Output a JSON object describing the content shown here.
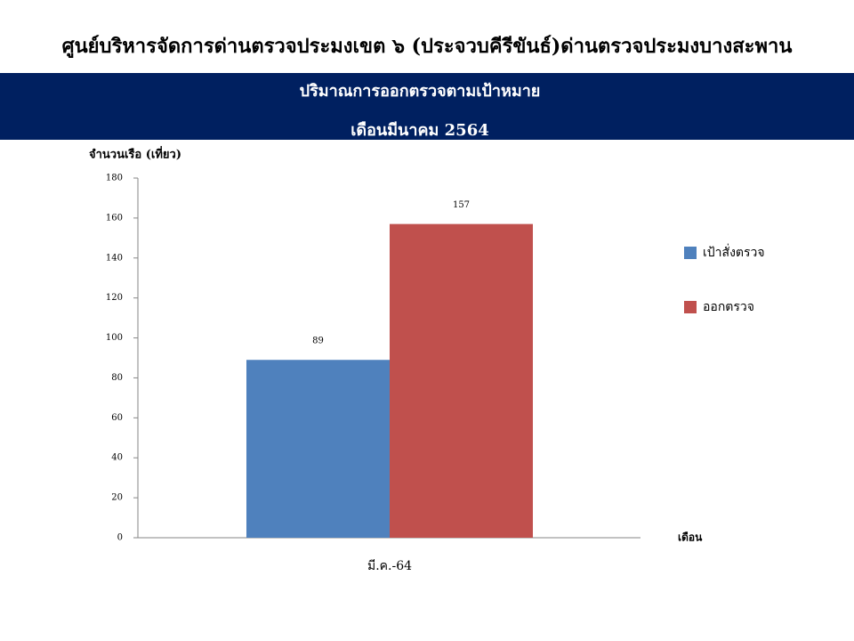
{
  "header": {
    "title": "ศูนย์บริหารจัดการด่านตรวจประมงเขต  ๖ (ประจวบคีรีขันธ์)ด่านตรวจประมงบางสะพาน"
  },
  "chart_data": {
    "type": "bar",
    "title": "ปริมาณการออกตรวจตามเป้าหมาย",
    "subtitle": "เดือนมีนาคม 2564",
    "y_label": "จำนวนเรือ (เที่ยว)",
    "x_label": "เดือน",
    "categories": [
      "มี.ค.-64"
    ],
    "series": [
      {
        "name": "เป้าสั่งตรวจ",
        "color": "#4f81bd",
        "values": [
          89
        ]
      },
      {
        "name": "ออกตรวจ",
        "color": "#c0504d",
        "values": [
          157
        ]
      }
    ],
    "ylim": [
      0,
      180
    ],
    "yticks": [
      0,
      20,
      40,
      60,
      80,
      100,
      120,
      140,
      160,
      180
    ],
    "grid": false,
    "legend": "right"
  }
}
